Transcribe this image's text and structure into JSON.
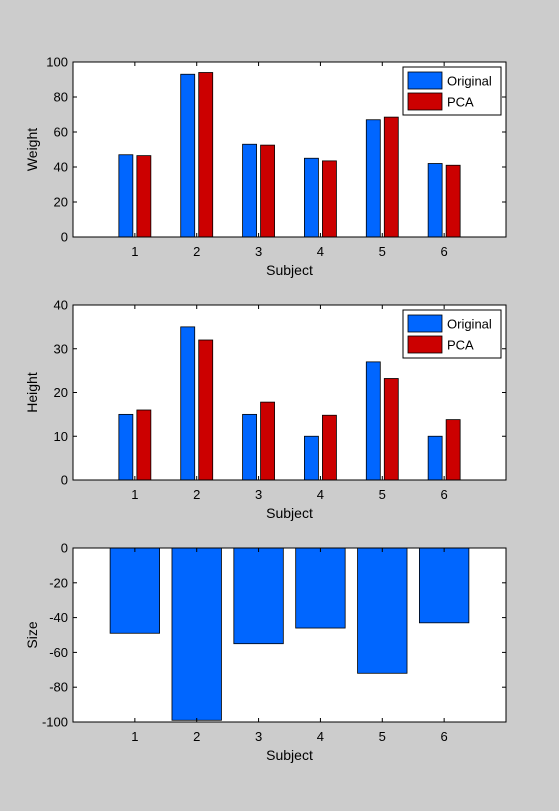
{
  "colors": {
    "original": "#0066ff",
    "pca": "#cc0000",
    "figure_bg": "#cccccc",
    "axes_bg": "#ffffff"
  },
  "chart_data": [
    {
      "type": "bar",
      "xlabel": "Subject",
      "ylabel": "Weight",
      "ylim": [
        0,
        100
      ],
      "yticks": [
        0,
        20,
        40,
        60,
        80,
        100
      ],
      "xlim": [
        0,
        7
      ],
      "categories": [
        "1",
        "2",
        "3",
        "4",
        "5",
        "6"
      ],
      "legend_position": "top-right",
      "series": [
        {
          "name": "Original",
          "color": "#0066ff",
          "values": [
            47,
            93,
            53,
            45,
            67,
            42
          ]
        },
        {
          "name": "PCA",
          "color": "#cc0000",
          "values": [
            46.5,
            94,
            52.5,
            43.5,
            68.5,
            41
          ]
        }
      ]
    },
    {
      "type": "bar",
      "xlabel": "Subject",
      "ylabel": "Height",
      "ylim": [
        0,
        40
      ],
      "yticks": [
        0,
        10,
        20,
        30,
        40
      ],
      "xlim": [
        0,
        7
      ],
      "categories": [
        "1",
        "2",
        "3",
        "4",
        "5",
        "6"
      ],
      "legend_position": "top-right",
      "series": [
        {
          "name": "Original",
          "color": "#0066ff",
          "values": [
            15,
            35,
            15,
            10,
            27,
            10
          ]
        },
        {
          "name": "PCA",
          "color": "#cc0000",
          "values": [
            16,
            32,
            17.8,
            14.8,
            23.2,
            13.8
          ]
        }
      ]
    },
    {
      "type": "bar",
      "xlabel": "Subject",
      "ylabel": "Size",
      "ylim": [
        -100,
        0
      ],
      "yticks": [
        -100,
        -80,
        -60,
        -40,
        -20,
        0
      ],
      "xlim": [
        0,
        7
      ],
      "categories": [
        "1",
        "2",
        "3",
        "4",
        "5",
        "6"
      ],
      "series": [
        {
          "color": "#0066ff",
          "values": [
            -49,
            -99,
            -55,
            -46,
            -72,
            -43
          ]
        }
      ]
    }
  ]
}
